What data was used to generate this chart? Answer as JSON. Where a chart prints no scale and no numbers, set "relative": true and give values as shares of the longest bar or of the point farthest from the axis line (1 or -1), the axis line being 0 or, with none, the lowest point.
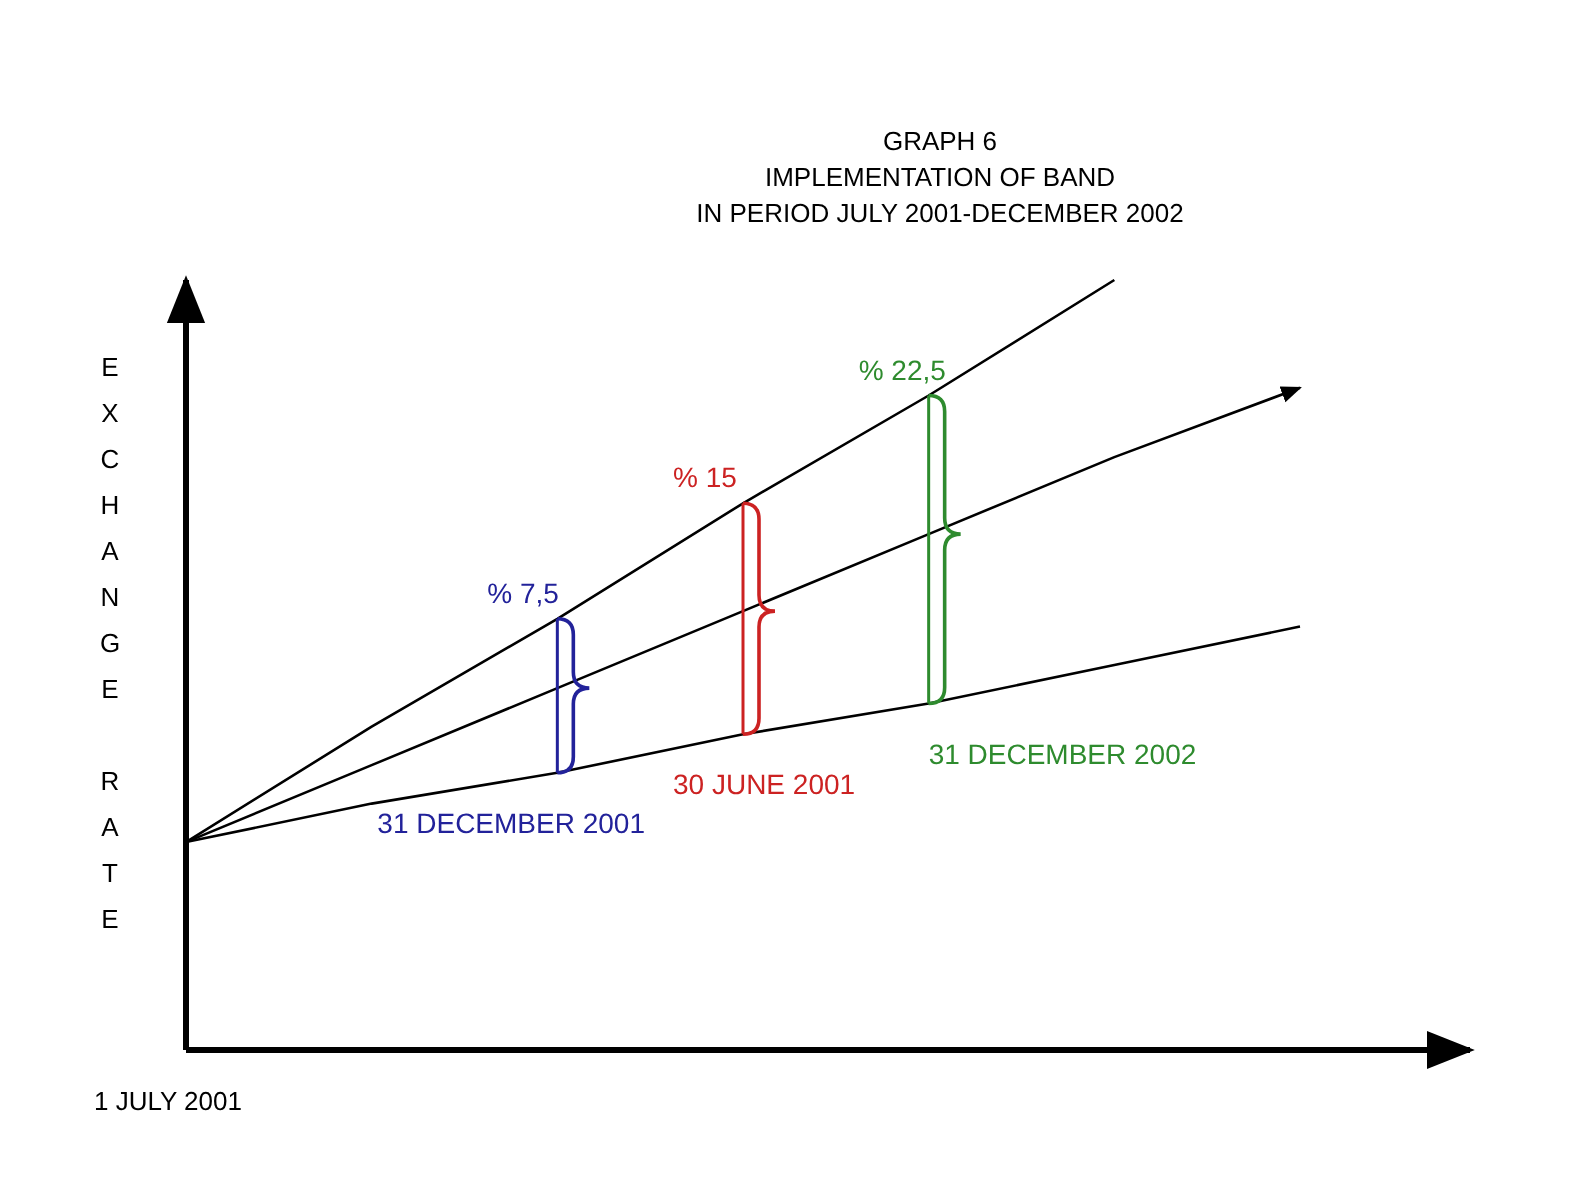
{
  "chart_data": {
    "type": "line",
    "relative": true,
    "title": "GRAPH 6",
    "subtitle": "IMPLEMENTATION OF BAND\nIN PERIOD JULY 2001-DECEMBER 2002",
    "ylabel": "EXCHANGE RATE",
    "xlabel": "1 JULY 2001",
    "categories": [
      null,
      null,
      null,
      null,
      null,
      null,
      null
    ],
    "series": [
      {
        "color": "#000000",
        "values": [
          0.27,
          0.42,
          0.56,
          0.71,
          0.85,
          1,
          null
        ]
      },
      {
        "color": "#000000",
        "values": [
          0.27,
          0.37,
          0.47,
          0.57,
          0.67,
          0.77,
          0.86
        ]
      },
      {
        "color": "#000000",
        "values": [
          0.27,
          0.32,
          0.36,
          0.41,
          0.45,
          0.5,
          0.55
        ]
      }
    ],
    "annotations": [
      "% 7,5",
      "% 15",
      "% 22,5",
      "31 DECEMBER 2001",
      "30 JUNE 2001",
      "31 DECEMBER 2002"
    ],
    "marker": "none",
    "line_style": "solid"
  }
}
